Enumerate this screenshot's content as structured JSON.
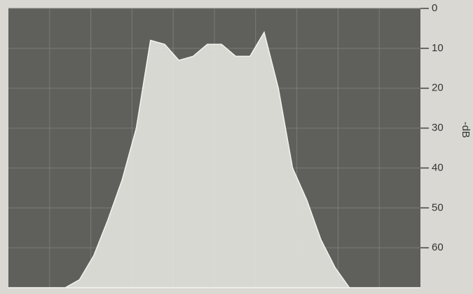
{
  "chart_data": {
    "type": "area",
    "y_label": "-dB",
    "categories": [
      null,
      null,
      null,
      null,
      null,
      null,
      null,
      null,
      null,
      null,
      null,
      null,
      null,
      null,
      null,
      null,
      null,
      null,
      null,
      null,
      null,
      null,
      null,
      null,
      null,
      null,
      null,
      null,
      null,
      null
    ],
    "values": [
      70,
      70,
      70,
      70,
      70,
      68,
      62,
      53,
      43,
      30,
      8,
      9,
      13,
      12,
      9,
      9,
      12,
      12,
      6,
      20,
      40,
      48,
      58,
      65,
      70,
      70,
      70,
      70,
      70,
      70
    ],
    "color": "#e6e6e0",
    "ylim": [
      0,
      70
    ],
    "yticks": [
      0,
      10,
      20,
      30,
      40,
      50,
      60
    ],
    "y_reversed": true,
    "grid": true
  }
}
